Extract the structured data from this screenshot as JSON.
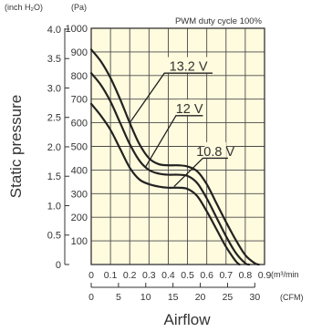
{
  "chart_data": {
    "type": "line",
    "condition": "PWM duty cycle 100%",
    "ylabel": "Static pressure",
    "xlabel": "Airflow",
    "y_pa": {
      "unit": "(Pa)",
      "range": [
        0,
        1000
      ],
      "ticks": [
        100,
        200,
        300,
        400,
        500,
        600,
        700,
        800,
        900,
        1000
      ]
    },
    "y_inh2o": {
      "unit": "(inch H₂O)",
      "ticks": [
        "4.0",
        "3.5",
        "3.0",
        "2.5",
        "2.0",
        "1.5",
        "1.0",
        "0.5",
        "0"
      ]
    },
    "x_m3min": {
      "unit": "(m³/min",
      "range": [
        0,
        0.9
      ],
      "ticks": [
        "0",
        "0.1",
        "0.2",
        "0.3",
        "0.4",
        "0.5",
        "0.6",
        "0.7",
        "0.8",
        "0.9"
      ]
    },
    "x_cfm": {
      "unit": "(CFM)",
      "ticks": [
        "0",
        "5",
        "10",
        "15",
        "20",
        "25",
        "30"
      ]
    },
    "series": [
      {
        "name": "13.2 V",
        "x": [
          0,
          0.05,
          0.1,
          0.15,
          0.2,
          0.25,
          0.3,
          0.35,
          0.4,
          0.45,
          0.5,
          0.55,
          0.6,
          0.65,
          0.7,
          0.75,
          0.8,
          0.85,
          0.87
        ],
        "y": [
          910,
          860,
          790,
          700,
          600,
          510,
          450,
          425,
          420,
          420,
          415,
          395,
          340,
          260,
          180,
          105,
          40,
          5,
          0
        ]
      },
      {
        "name": "12 V",
        "x": [
          0,
          0.05,
          0.1,
          0.15,
          0.2,
          0.25,
          0.3,
          0.35,
          0.4,
          0.45,
          0.5,
          0.55,
          0.6,
          0.65,
          0.7,
          0.75,
          0.8,
          0.82
        ],
        "y": [
          810,
          760,
          690,
          600,
          510,
          440,
          400,
          385,
          380,
          380,
          375,
          345,
          280,
          200,
          120,
          50,
          5,
          0
        ]
      },
      {
        "name": "10.8 V",
        "x": [
          0,
          0.05,
          0.1,
          0.15,
          0.2,
          0.25,
          0.3,
          0.35,
          0.4,
          0.45,
          0.5,
          0.55,
          0.6,
          0.65,
          0.7,
          0.75,
          0.77
        ],
        "y": [
          680,
          630,
          570,
          490,
          410,
          360,
          340,
          330,
          325,
          325,
          320,
          290,
          225,
          150,
          75,
          15,
          0
        ]
      }
    ]
  }
}
